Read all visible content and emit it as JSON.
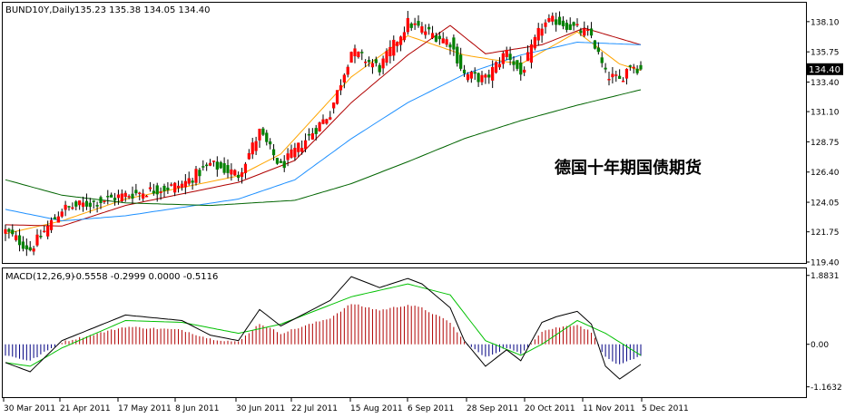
{
  "header": {
    "symbol": "BUND10Y,Daily",
    "ohlc": "135.23 135.38 134.05 134.40"
  },
  "annotation": "德国十年期国债期货",
  "colors": {
    "up_body": "#ff0000",
    "down_body": "#008000",
    "wick": "#000000",
    "ma_fast": "#ffa500",
    "ma_mid": "#b00000",
    "ma_slow": "#1e90ff",
    "ma_long": "#006400",
    "macd_main": "#000000",
    "macd_signal": "#00c000",
    "hist_pos": "#b00000",
    "hist_neg": "#000080",
    "price_tag": "#000000",
    "grid": "#d8d8d8"
  },
  "chart_data": [
    {
      "type": "candlestick",
      "title": "BUND10Y,Daily",
      "subtitle": "135.23 135.38 134.05 134.40",
      "yaxis_ticks": [
        "138.10",
        "135.75",
        "133.40",
        "131.10",
        "128.75",
        "126.40",
        "124.05",
        "121.75",
        "119.40"
      ],
      "ylim": [
        119.4,
        139.5
      ],
      "current_price": "134.40",
      "grid": false,
      "price_keypoints": [
        [
          "2011-03-30",
          121.8
        ],
        [
          "2011-04-08",
          120.4
        ],
        [
          "2011-04-21",
          123.5
        ],
        [
          "2011-05-17",
          124.6
        ],
        [
          "2011-06-08",
          125.4
        ],
        [
          "2011-06-20",
          127.0
        ],
        [
          "2011-06-30",
          126.2
        ],
        [
          "2011-07-08",
          129.5
        ],
        [
          "2011-07-18",
          126.8
        ],
        [
          "2011-08-05",
          131.0
        ],
        [
          "2011-08-15",
          135.8
        ],
        [
          "2011-08-25",
          134.5
        ],
        [
          "2011-09-06",
          138.0
        ],
        [
          "2011-09-12",
          137.5
        ],
        [
          "2011-09-22",
          136.5
        ],
        [
          "2011-09-28",
          134.0
        ],
        [
          "2011-10-06",
          133.6
        ],
        [
          "2011-10-14",
          135.8
        ],
        [
          "2011-10-20",
          134.0
        ],
        [
          "2011-10-28",
          137.8
        ],
        [
          "2011-11-03",
          138.2
        ],
        [
          "2011-11-11",
          137.5
        ],
        [
          "2011-11-17",
          137.0
        ],
        [
          "2011-11-23",
          134.0
        ],
        [
          "2011-11-29",
          133.5
        ],
        [
          "2011-12-02",
          134.8
        ],
        [
          "2011-12-07",
          134.4
        ]
      ],
      "moving_averages": [
        {
          "keypoints": [
            [
              "2011-03-30",
              121.6
            ],
            [
              "2011-04-21",
              122.6
            ],
            [
              "2011-05-17",
              124.3
            ],
            [
              "2011-06-30",
              126.1
            ],
            [
              "2011-07-18",
              127.8
            ],
            [
              "2011-08-15",
              133.8
            ],
            [
              "2011-09-06",
              137.0
            ],
            [
              "2011-09-28",
              135.5
            ],
            [
              "2011-10-20",
              134.8
            ],
            [
              "2011-11-11",
              137.3
            ],
            [
              "2011-11-29",
              134.8
            ],
            [
              "2011-12-07",
              134.3
            ]
          ]
        },
        {
          "keypoints": [
            [
              "2011-03-30",
              122.3
            ],
            [
              "2011-04-21",
              122.2
            ],
            [
              "2011-05-17",
              123.8
            ],
            [
              "2011-06-30",
              125.6
            ],
            [
              "2011-07-22",
              127.3
            ],
            [
              "2011-08-15",
              131.8
            ],
            [
              "2011-09-06",
              135.5
            ],
            [
              "2011-09-22",
              137.8
            ],
            [
              "2011-10-06",
              135.6
            ],
            [
              "2011-10-28",
              136.3
            ],
            [
              "2011-11-15",
              137.6
            ],
            [
              "2011-12-07",
              136.3
            ]
          ]
        },
        {
          "keypoints": [
            [
              "2011-03-30",
              123.5
            ],
            [
              "2011-04-21",
              122.6
            ],
            [
              "2011-05-17",
              123.0
            ],
            [
              "2011-06-30",
              124.3
            ],
            [
              "2011-07-22",
              125.8
            ],
            [
              "2011-08-15",
              129.0
            ],
            [
              "2011-09-06",
              131.8
            ],
            [
              "2011-09-28",
              134.0
            ],
            [
              "2011-10-20",
              135.5
            ],
            [
              "2011-11-11",
              136.5
            ],
            [
              "2011-12-07",
              136.3
            ]
          ]
        },
        {
          "keypoints": [
            [
              "2011-03-30",
              125.8
            ],
            [
              "2011-04-21",
              124.6
            ],
            [
              "2011-05-17",
              124.0
            ],
            [
              "2011-06-20",
              123.8
            ],
            [
              "2011-07-22",
              124.2
            ],
            [
              "2011-08-15",
              125.5
            ],
            [
              "2011-09-06",
              127.2
            ],
            [
              "2011-09-28",
              129.0
            ],
            [
              "2011-10-20",
              130.4
            ],
            [
              "2011-11-11",
              131.6
            ],
            [
              "2011-12-07",
              132.8
            ]
          ]
        }
      ],
      "x_tick_labels": [
        "30 Mar 2011",
        "21 Apr 2011",
        "17 May 2011",
        "8 Jun 2011",
        "30 Jun 2011",
        "22 Jul 2011",
        "15 Aug 2011",
        "6 Sep 2011",
        "28 Sep 2011",
        "20 Oct 2011",
        "11 Nov 2011",
        "5 Dec 2011"
      ]
    },
    {
      "type": "macd",
      "title": "MACD(12,26,9)",
      "subtitle": "-0.5558 -0.2999 0.0000 -0.5116",
      "yaxis_ticks": [
        "1.8831",
        "0.00",
        "-1.1632"
      ],
      "ylim": [
        -1.42,
        2.05
      ],
      "macd_keypoints": [
        [
          "2011-03-30",
          -0.5
        ],
        [
          "2011-04-08",
          -0.75
        ],
        [
          "2011-04-21",
          0.1
        ],
        [
          "2011-05-17",
          0.8
        ],
        [
          "2011-06-08",
          0.65
        ],
        [
          "2011-06-20",
          0.25
        ],
        [
          "2011-06-30",
          0.1
        ],
        [
          "2011-07-08",
          0.95
        ],
        [
          "2011-07-18",
          0.5
        ],
        [
          "2011-08-05",
          1.2
        ],
        [
          "2011-08-15",
          1.85
        ],
        [
          "2011-08-25",
          1.55
        ],
        [
          "2011-09-06",
          1.8
        ],
        [
          "2011-09-12",
          1.65
        ],
        [
          "2011-09-22",
          1.0
        ],
        [
          "2011-09-28",
          0.1
        ],
        [
          "2011-10-06",
          -0.6
        ],
        [
          "2011-10-14",
          -0.15
        ],
        [
          "2011-10-20",
          -0.45
        ],
        [
          "2011-10-28",
          0.6
        ],
        [
          "2011-11-03",
          0.75
        ],
        [
          "2011-11-11",
          0.9
        ],
        [
          "2011-11-17",
          0.55
        ],
        [
          "2011-11-23",
          -0.6
        ],
        [
          "2011-11-29",
          -0.95
        ],
        [
          "2011-12-07",
          -0.55
        ]
      ],
      "signal_keypoints": [
        [
          "2011-03-30",
          -0.5
        ],
        [
          "2011-04-08",
          -0.6
        ],
        [
          "2011-04-21",
          -0.1
        ],
        [
          "2011-05-17",
          0.65
        ],
        [
          "2011-06-08",
          0.6
        ],
        [
          "2011-06-30",
          0.3
        ],
        [
          "2011-07-18",
          0.55
        ],
        [
          "2011-08-15",
          1.3
        ],
        [
          "2011-09-06",
          1.65
        ],
        [
          "2011-09-22",
          1.35
        ],
        [
          "2011-10-06",
          0.1
        ],
        [
          "2011-10-20",
          -0.3
        ],
        [
          "2011-10-28",
          0.0
        ],
        [
          "2011-11-11",
          0.65
        ],
        [
          "2011-11-23",
          0.3
        ],
        [
          "2011-12-07",
          -0.3
        ]
      ]
    }
  ]
}
